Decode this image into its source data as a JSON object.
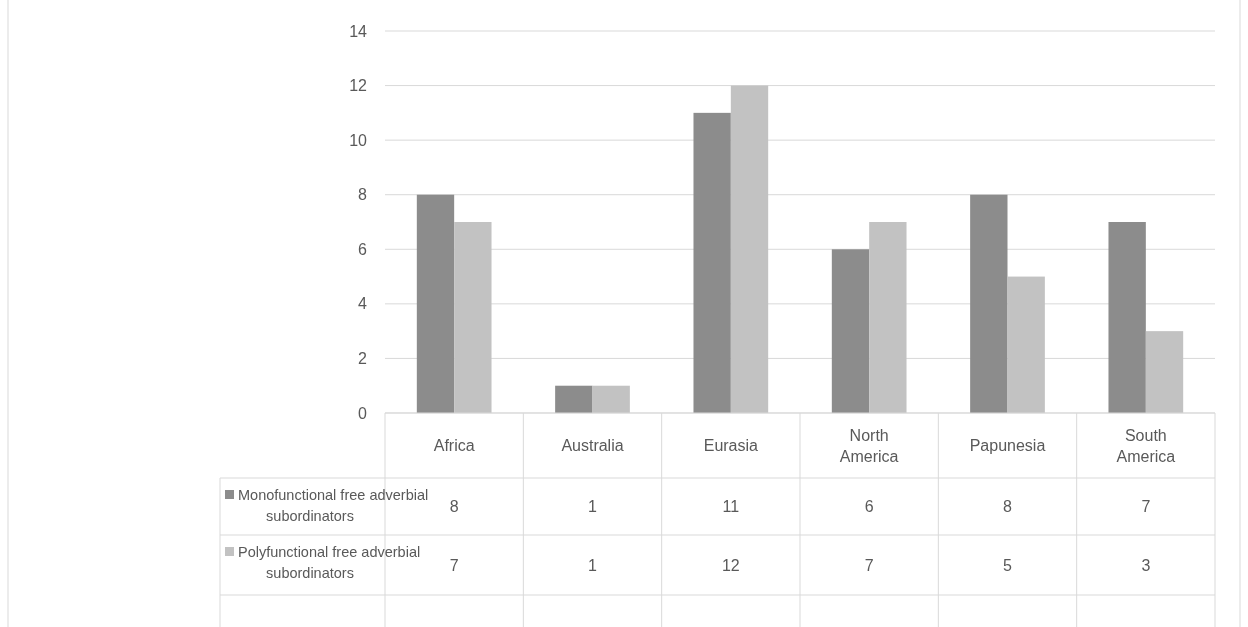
{
  "chart_data": {
    "type": "bar",
    "categories": [
      "Africa",
      "Australia",
      "Eurasia",
      "North America",
      "Papunesia",
      "South America"
    ],
    "series": [
      {
        "name": "Monofunctional free adverbial subordinators",
        "color": "#8c8c8c",
        "values": [
          8,
          1,
          11,
          6,
          8,
          7
        ]
      },
      {
        "name": "Polyfunctional free adverbial subordinators",
        "color": "#c2c2c2",
        "values": [
          7,
          1,
          12,
          7,
          5,
          3
        ]
      }
    ],
    "ylim": [
      0,
      14
    ],
    "yticks": [
      0,
      2,
      4,
      6,
      8,
      10,
      12,
      14
    ],
    "grid": "y",
    "data_labels": true,
    "legend": "left"
  }
}
